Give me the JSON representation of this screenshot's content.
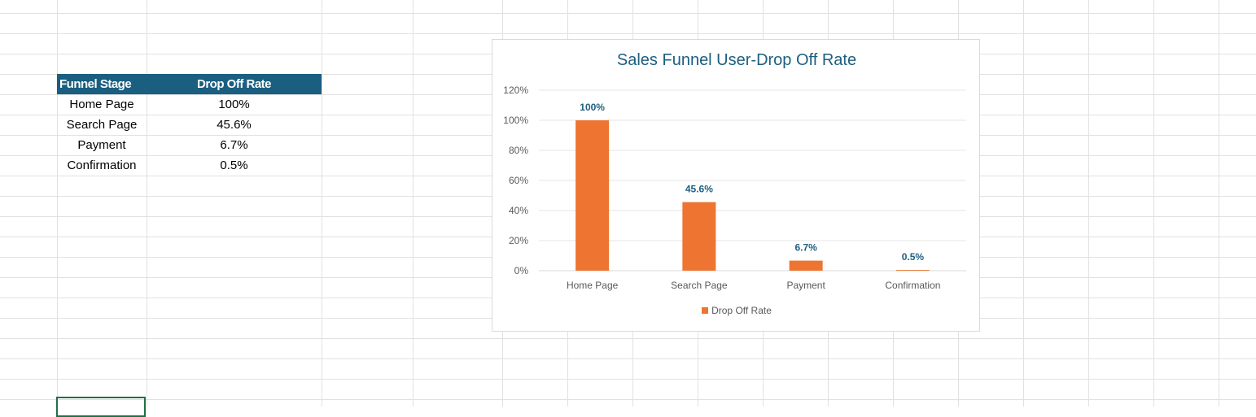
{
  "table": {
    "headers": [
      "Funnel Stage",
      "Drop Off Rate"
    ],
    "rows": [
      {
        "stage": "Home Page",
        "rate": "100%"
      },
      {
        "stage": "Search Page",
        "rate": "45.6%"
      },
      {
        "stage": "Payment",
        "rate": "6.7%"
      },
      {
        "stage": "Confirmation",
        "rate": "0.5%"
      }
    ]
  },
  "colors": {
    "header_bg": "#1a5e80",
    "bar": "#ed7531",
    "data_label": "#1f5f7e",
    "selection": "#1e7145",
    "grid": "#e1e1e1"
  },
  "chart_data": {
    "type": "bar",
    "title": "Sales Funnel User-Drop Off Rate",
    "categories": [
      "Home Page",
      "Search Page",
      "Payment",
      "Confirmation"
    ],
    "series": [
      {
        "name": "Drop Off Rate",
        "values": [
          100,
          45.6,
          6.7,
          0.5
        ]
      }
    ],
    "data_labels": [
      "100%",
      "45.6%",
      "6.7%",
      "0.5%"
    ],
    "y_tick_labels": [
      "0%",
      "20%",
      "40%",
      "60%",
      "80%",
      "100%",
      "120%"
    ],
    "ylim": [
      0,
      120
    ],
    "grid": true,
    "legend": "bottom",
    "legend_label": "Drop Off Rate"
  }
}
